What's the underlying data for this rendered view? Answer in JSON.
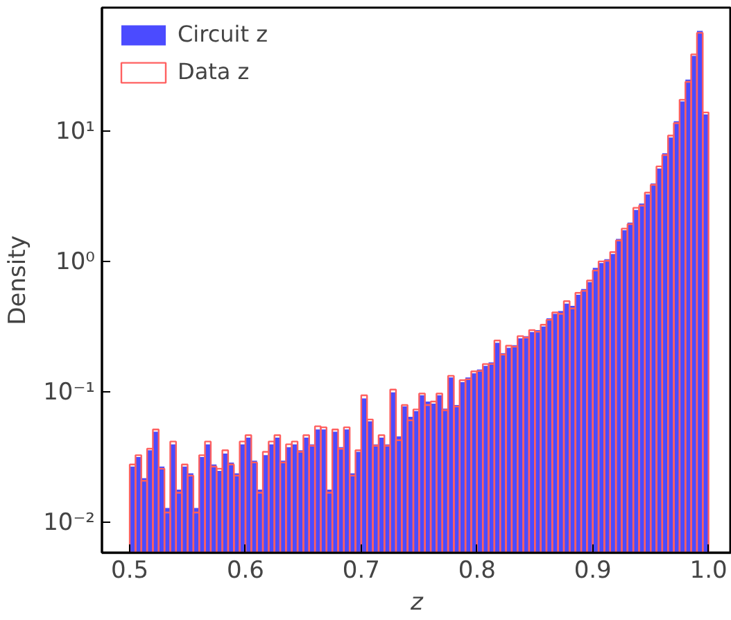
{
  "chart_data": {
    "type": "histogram",
    "xlabel": "z",
    "ylabel": "Density",
    "log": "y",
    "grid": false,
    "legend": "top left",
    "bins": [
      0.5,
      0.505,
      0.51,
      0.515,
      0.52,
      0.525,
      0.53,
      0.535,
      0.54,
      0.545,
      0.55,
      0.555,
      0.56,
      0.565,
      0.57,
      0.575,
      0.58,
      0.585,
      0.59,
      0.595,
      0.6,
      0.605,
      0.61,
      0.615,
      0.62,
      0.625,
      0.63,
      0.635,
      0.64,
      0.645,
      0.65,
      0.655,
      0.66,
      0.665,
      0.67,
      0.675,
      0.68,
      0.685,
      0.69,
      0.695,
      0.7,
      0.705,
      0.71,
      0.715,
      0.72,
      0.725,
      0.73,
      0.735,
      0.74,
      0.745,
      0.75,
      0.755,
      0.76,
      0.765,
      0.77,
      0.775,
      0.78,
      0.785,
      0.79,
      0.795,
      0.8,
      0.805,
      0.81,
      0.815,
      0.82,
      0.825,
      0.83,
      0.835,
      0.84,
      0.845,
      0.85,
      0.855,
      0.86,
      0.865,
      0.87,
      0.875,
      0.88,
      0.885,
      0.89,
      0.895,
      0.9,
      0.905,
      0.91,
      0.915,
      0.92,
      0.925,
      0.93,
      0.935,
      0.94,
      0.945,
      0.95,
      0.955,
      0.96,
      0.965,
      0.97,
      0.975,
      0.98,
      0.985,
      0.99,
      0.995,
      1.0
    ],
    "series": [
      {
        "name": "Circuit z",
        "color": "#4b4bff",
        "values": [
          0.027,
          0.032,
          0.022,
          0.036,
          0.05,
          0.027,
          0.013,
          0.04,
          0.018,
          0.027,
          0.024,
          0.013,
          0.032,
          0.04,
          0.028,
          0.025,
          0.034,
          0.029,
          0.024,
          0.04,
          0.045,
          0.03,
          0.018,
          0.033,
          0.04,
          0.045,
          0.03,
          0.038,
          0.04,
          0.036,
          0.045,
          0.04,
          0.052,
          0.052,
          0.018,
          0.05,
          0.038,
          0.052,
          0.024,
          0.035,
          0.09,
          0.06,
          0.04,
          0.045,
          0.04,
          0.1,
          0.046,
          0.078,
          0.065,
          0.072,
          0.095,
          0.085,
          0.082,
          0.095,
          0.075,
          0.13,
          0.08,
          0.12,
          0.13,
          0.14,
          0.15,
          0.16,
          0.17,
          0.24,
          0.2,
          0.22,
          0.23,
          0.26,
          0.27,
          0.29,
          0.3,
          0.32,
          0.37,
          0.4,
          0.42,
          0.48,
          0.46,
          0.56,
          0.62,
          0.7,
          0.9,
          0.98,
          1.05,
          1.15,
          1.5,
          1.75,
          2.0,
          2.5,
          2.8,
          3.3,
          4.0,
          5.2,
          6.8,
          9.0,
          12,
          17,
          25,
          38,
          59,
          13.5
        ]
      },
      {
        "name": "Data z",
        "color": "#ff6060",
        "values": [
          0.028,
          0.033,
          0.021,
          0.037,
          0.052,
          0.026,
          0.012,
          0.042,
          0.017,
          0.028,
          0.023,
          0.012,
          0.033,
          0.042,
          0.027,
          0.026,
          0.036,
          0.028,
          0.023,
          0.042,
          0.047,
          0.029,
          0.017,
          0.035,
          0.042,
          0.047,
          0.029,
          0.04,
          0.042,
          0.035,
          0.047,
          0.039,
          0.055,
          0.054,
          0.017,
          0.052,
          0.037,
          0.054,
          0.023,
          0.036,
          0.095,
          0.062,
          0.039,
          0.047,
          0.039,
          0.105,
          0.043,
          0.08,
          0.061,
          0.074,
          0.098,
          0.08,
          0.085,
          0.098,
          0.073,
          0.134,
          0.078,
          0.124,
          0.126,
          0.145,
          0.146,
          0.165,
          0.165,
          0.25,
          0.195,
          0.228,
          0.224,
          0.27,
          0.263,
          0.3,
          0.292,
          0.33,
          0.36,
          0.41,
          0.4,
          0.5,
          0.44,
          0.58,
          0.6,
          0.72,
          0.86,
          1.01,
          1.02,
          1.19,
          1.46,
          1.8,
          1.95,
          2.6,
          2.7,
          3.4,
          3.9,
          5.4,
          6.6,
          9.3,
          11.6,
          17.5,
          24,
          39,
          57,
          14
        ]
      }
    ],
    "xlim": [
      0.476,
      1.02
    ],
    "ylim": [
      0.0059,
      89
    ],
    "xticks": [
      {
        "value": 0.5,
        "label": "0.5"
      },
      {
        "value": 0.6,
        "label": "0.6"
      },
      {
        "value": 0.7,
        "label": "0.7"
      },
      {
        "value": 0.8,
        "label": "0.8"
      },
      {
        "value": 0.9,
        "label": "0.9"
      },
      {
        "value": 1.0,
        "label": "1.0"
      }
    ],
    "yticks": [
      {
        "value": 0.01,
        "label": "10⁻²"
      },
      {
        "value": 0.1,
        "label": "10⁻¹"
      },
      {
        "value": 1,
        "label": "10⁰"
      },
      {
        "value": 10,
        "label": "10¹"
      }
    ]
  }
}
